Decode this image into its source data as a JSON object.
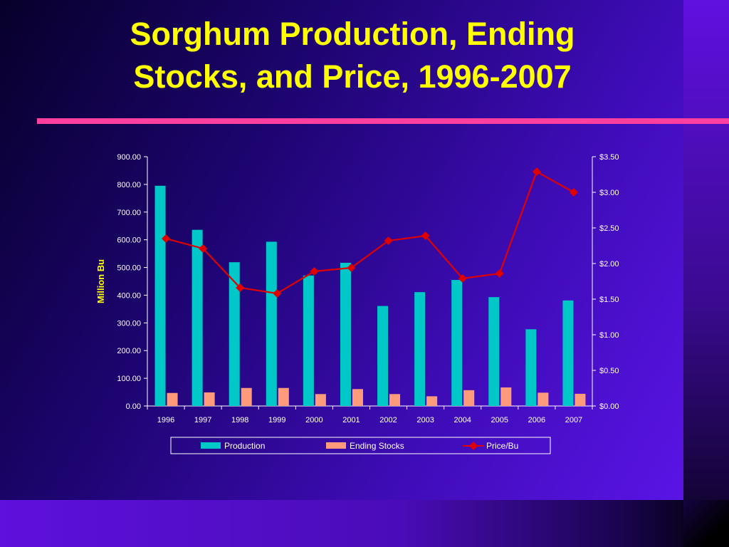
{
  "slide": {
    "title_line1": "Sorghum Production, Ending",
    "title_line2": "Stocks, and Price, 1996-2007",
    "colors": {
      "title": "#ffff00",
      "rule": "#ff3fa0",
      "background": "#2a0890"
    }
  },
  "chart_data": {
    "type": "bar",
    "categories": [
      "1996",
      "1997",
      "1998",
      "1999",
      "2000",
      "2001",
      "2002",
      "2003",
      "2004",
      "2005",
      "2006",
      "2007"
    ],
    "series": [
      {
        "name": "Production",
        "kind": "bar",
        "axis": "left",
        "color": "#00c8c8",
        "values": [
          795,
          636,
          519,
          593,
          471,
          517,
          361,
          411,
          455,
          393,
          277,
          381
        ]
      },
      {
        "name": "Ending Stocks",
        "kind": "bar",
        "axis": "left",
        "color": "#ff9a7a",
        "values": [
          47,
          49,
          65,
          65,
          43,
          61,
          43,
          35,
          57,
          67,
          48,
          44
        ]
      },
      {
        "name": "Price/Bu",
        "kind": "line",
        "axis": "right",
        "color": "#e00000",
        "values": [
          2.35,
          2.21,
          1.66,
          1.58,
          1.89,
          1.94,
          2.32,
          2.39,
          1.79,
          1.86,
          3.29,
          3.0
        ]
      }
    ],
    "ylabel": "Million Bu",
    "ylim": [
      0,
      900
    ],
    "y_ticks": [
      "0.00",
      "100.00",
      "200.00",
      "300.00",
      "400.00",
      "500.00",
      "600.00",
      "700.00",
      "800.00",
      "900.00"
    ],
    "y2lim": [
      0,
      3.5
    ],
    "y2_ticks": [
      "$0.00",
      "$0.50",
      "$1.00",
      "$1.50",
      "$2.00",
      "$2.50",
      "$3.00",
      "$3.50"
    ],
    "legend_position": "bottom",
    "grid": false
  }
}
